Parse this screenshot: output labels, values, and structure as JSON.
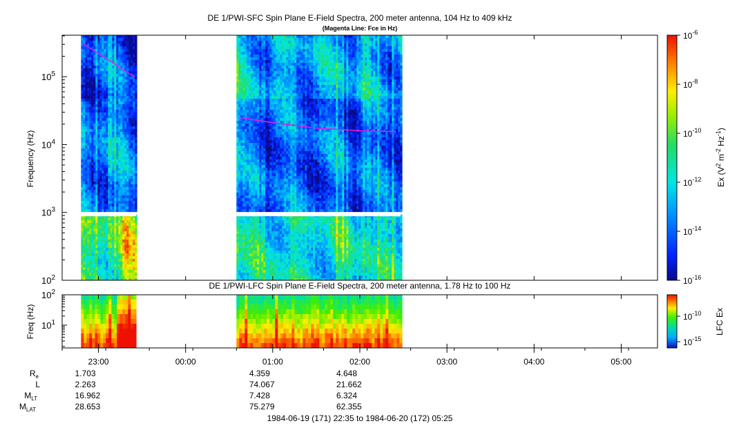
{
  "chart_data": [
    {
      "type": "heatmap",
      "title": "DE 1/PWI-SFC  Spin Plane E-Field Spectra, 200 meter antenna, 104 Hz to 409 kHz",
      "subtitle": "(Magenta Line: Fce in Hz)",
      "ylabel": "Frequency (Hz)",
      "yscale": "log",
      "ylim": [
        100,
        409000
      ],
      "yticks": [
        {
          "value": 100,
          "label": "10",
          "exp": "2"
        },
        {
          "value": 1000,
          "label": "10",
          "exp": "3"
        },
        {
          "value": 10000,
          "label": "10",
          "exp": "4"
        },
        {
          "value": 100000,
          "label": "10",
          "exp": "5"
        }
      ],
      "colorbar": {
        "label_parts": [
          "Ex (V",
          "2",
          " m",
          "-2",
          " Hz",
          "-1",
          ")"
        ],
        "scale": "log",
        "range": [
          1e-16,
          1e-06
        ],
        "ticks": [
          {
            "value": 1e-06,
            "label": "10",
            "exp": "-6"
          },
          {
            "value": 1e-08,
            "label": "10",
            "exp": "-8"
          },
          {
            "value": 1e-10,
            "label": "10",
            "exp": "-10"
          },
          {
            "value": 1e-12,
            "label": "10",
            "exp": "-12"
          },
          {
            "value": 1e-14,
            "label": "10",
            "exp": "-14"
          },
          {
            "value": 1e-16,
            "label": "10",
            "exp": "-16"
          }
        ]
      },
      "data_intervals": [
        [
          "22:48",
          "23:26"
        ],
        [
          "00:35",
          "02:28"
        ]
      ],
      "fce_line": {
        "color": "#e020e0",
        "segments": [
          {
            "times": [
              "22:50",
              "23:00",
              "23:10",
              "23:20",
              "23:25"
            ],
            "freq_hz": [
              300000,
              220000,
              160000,
              115000,
              100000
            ]
          },
          {
            "times": [
              "00:37",
              "01:00",
              "01:30",
              "02:00",
              "02:25"
            ],
            "freq_hz": [
              25000,
              21000,
              17500,
              16000,
              15500
            ]
          }
        ]
      }
    },
    {
      "type": "heatmap",
      "title": "DE 1/PWI-LFC  Spin Plane E-Field Spectra, 200 meter antenna, 1.78 Hz to 100 Hz",
      "ylabel": "Freq (Hz)",
      "yscale": "log",
      "ylim": [
        1.78,
        100
      ],
      "yticks": [
        {
          "value": 10,
          "label": "10",
          "exp": "1"
        },
        {
          "value": 100,
          "label": "10",
          "exp": "2"
        }
      ],
      "colorbar": {
        "label": "LFC Ex",
        "scale": "log",
        "ticks": [
          {
            "value": 1e-10,
            "label": "10",
            "exp": "-10"
          },
          {
            "value": 1e-15,
            "label": "10",
            "exp": "-15"
          }
        ]
      },
      "data_intervals": [
        [
          "22:48",
          "23:26"
        ],
        [
          "00:35",
          "02:28"
        ]
      ]
    }
  ],
  "time_axis": {
    "start": "22:35",
    "end": "05:25",
    "tick_labels": [
      "23:00",
      "00:00",
      "01:00",
      "02:00",
      "03:00",
      "04:00",
      "05:00"
    ]
  },
  "ephemeris": {
    "rows": [
      {
        "label": "R",
        "sub": "e",
        "values": [
          {
            "time": "23:00",
            "value": "1.703"
          },
          {
            "time": "01:00",
            "value": "4.359"
          },
          {
            "time": "02:00",
            "value": "4.648"
          }
        ]
      },
      {
        "label": "L",
        "sub": "",
        "values": [
          {
            "time": "23:00",
            "value": "2.263"
          },
          {
            "time": "01:00",
            "value": "74.067"
          },
          {
            "time": "02:00",
            "value": "21.662"
          }
        ]
      },
      {
        "label": "M",
        "sub": "LT",
        "values": [
          {
            "time": "23:00",
            "value": "16.962"
          },
          {
            "time": "01:00",
            "value": "7.428"
          },
          {
            "time": "02:00",
            "value": "6.324"
          }
        ]
      },
      {
        "label": "M",
        "sub": "LAT",
        "values": [
          {
            "time": "23:00",
            "value": "28.653"
          },
          {
            "time": "01:00",
            "value": "75.279"
          },
          {
            "time": "02:00",
            "value": "62.355"
          }
        ]
      }
    ]
  },
  "footer": "1984-06-19 (171) 22:35 to 1984-06-20 (172) 05:25"
}
